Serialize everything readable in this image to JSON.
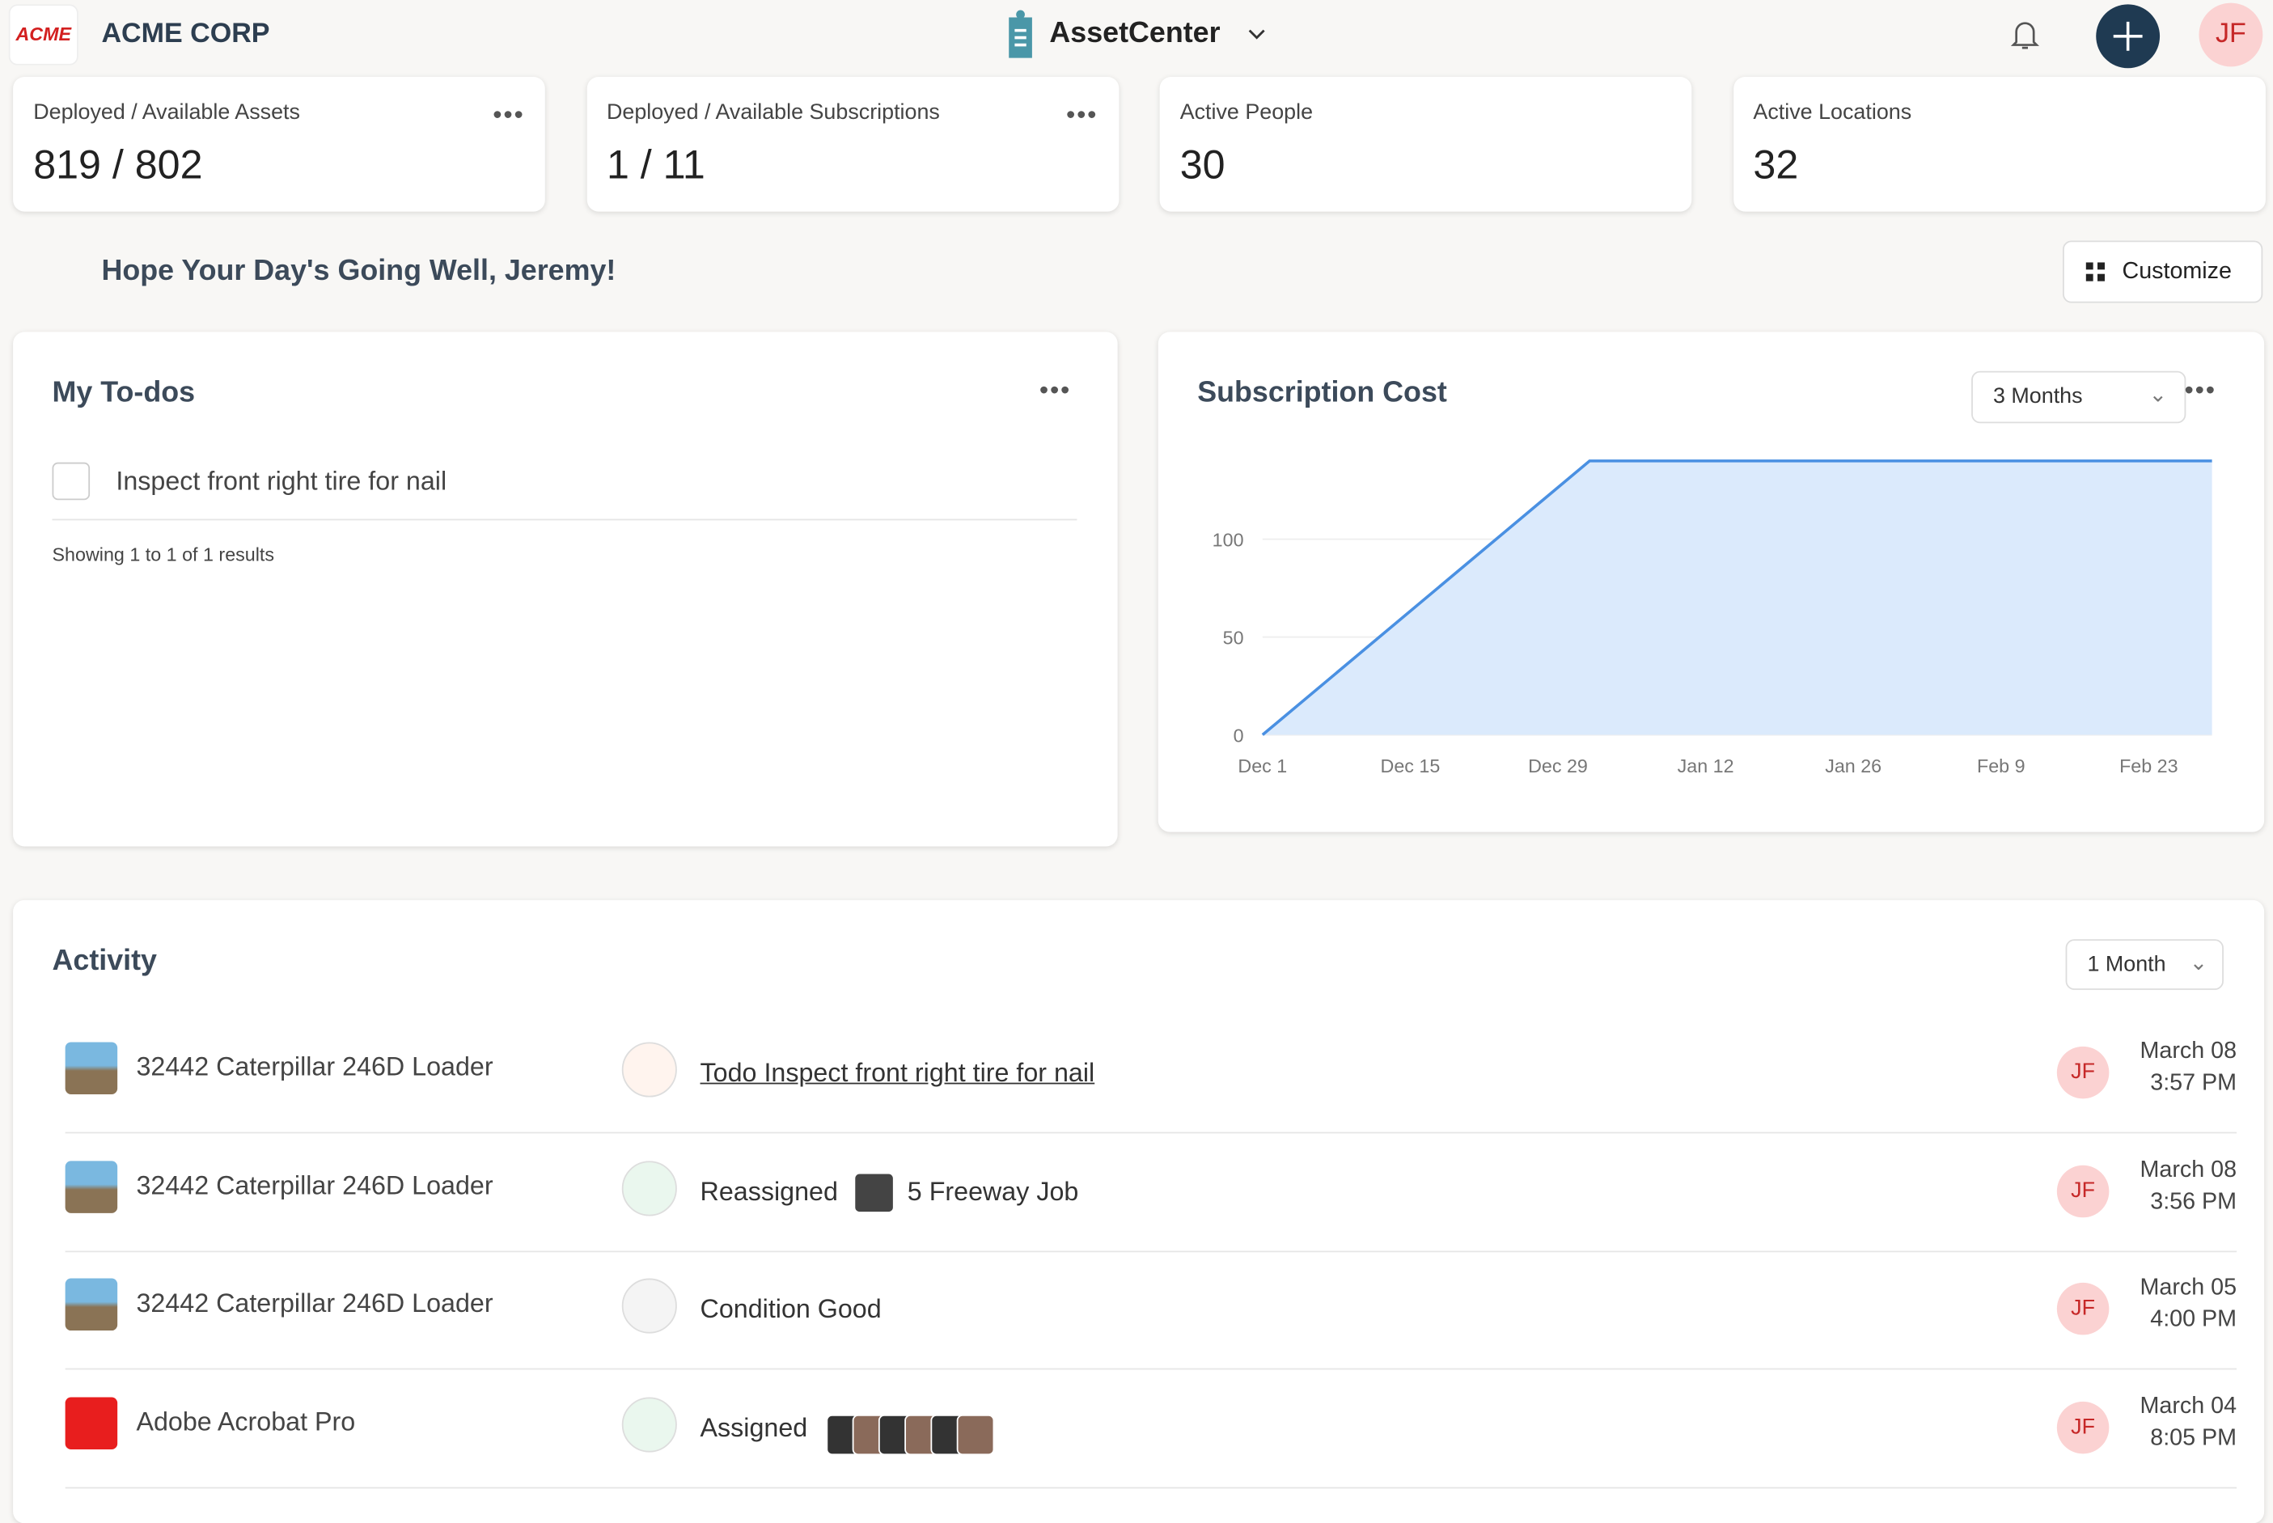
{
  "header": {
    "logo": "ACME",
    "company": "ACME CORP",
    "app": "AssetCenter",
    "avatar": "JF"
  },
  "stats": [
    {
      "label": "Deployed / Available Assets",
      "value": "819 / 802"
    },
    {
      "label": "Deployed / Available Subscriptions",
      "value": "1 / 11"
    },
    {
      "label": "Active People",
      "value": "30"
    },
    {
      "label": "Active Locations",
      "value": "32"
    }
  ],
  "greeting": "Hope Your Day's Going Well, Jeremy!",
  "customize": "Customize",
  "todos": {
    "title": "My To-dos",
    "items": [
      "Inspect front right tire for nail"
    ],
    "footer": "Showing 1 to 1 of 1 results"
  },
  "chart_data": {
    "type": "area",
    "title": "Subscription Cost",
    "range": "3 Months",
    "color": "#4a90e2",
    "fill": "#dbeafc",
    "x": [
      0,
      31,
      90
    ],
    "values": [
      0,
      140,
      140
    ],
    "xlim": [
      0,
      90
    ],
    "ylim": [
      0,
      140
    ],
    "xticks": [
      {
        "value": 0,
        "label": "Dec 1"
      },
      {
        "value": 14,
        "label": "Dec 15"
      },
      {
        "value": 28,
        "label": "Dec 29"
      },
      {
        "value": 42,
        "label": "Jan 12"
      },
      {
        "value": 56,
        "label": "Jan 26"
      },
      {
        "value": 70,
        "label": "Feb 9"
      },
      {
        "value": 84,
        "label": "Feb 23"
      }
    ],
    "yticks": [
      0,
      50,
      100
    ],
    "grid": true
  },
  "activity": {
    "title": "Activity",
    "range": "1 Month",
    "rows": [
      {
        "asset": "32442 Caterpillar 246D Loader",
        "action": "Todo Inspect front right tire for nail",
        "user": "JF",
        "date": "March 08",
        "time": "3:57 PM"
      },
      {
        "asset": "32442 Caterpillar 246D Loader",
        "action": "Reassigned",
        "target": "5 Freeway Job",
        "user": "JF",
        "date": "March 08",
        "time": "3:56 PM"
      },
      {
        "asset": "32442 Caterpillar 246D Loader",
        "action": "Condition Good",
        "user": "JF",
        "date": "March 05",
        "time": "4:00 PM"
      },
      {
        "asset": "Adobe Acrobat Pro",
        "action": "Assigned",
        "user": "JF",
        "date": "March 04",
        "time": "8:05 PM"
      }
    ]
  }
}
